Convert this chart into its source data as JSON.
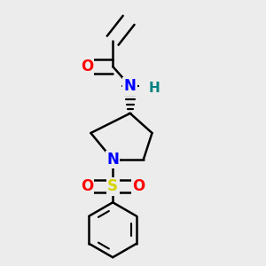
{
  "background_color": "#ececec",
  "atom_colors": {
    "C": "#000000",
    "N": "#0000ff",
    "O": "#ff0000",
    "S": "#d4d400",
    "H": "#008080"
  },
  "bond_color": "#000000",
  "bond_width": 1.8,
  "figsize": [
    3.0,
    3.0
  ],
  "dpi": 100
}
